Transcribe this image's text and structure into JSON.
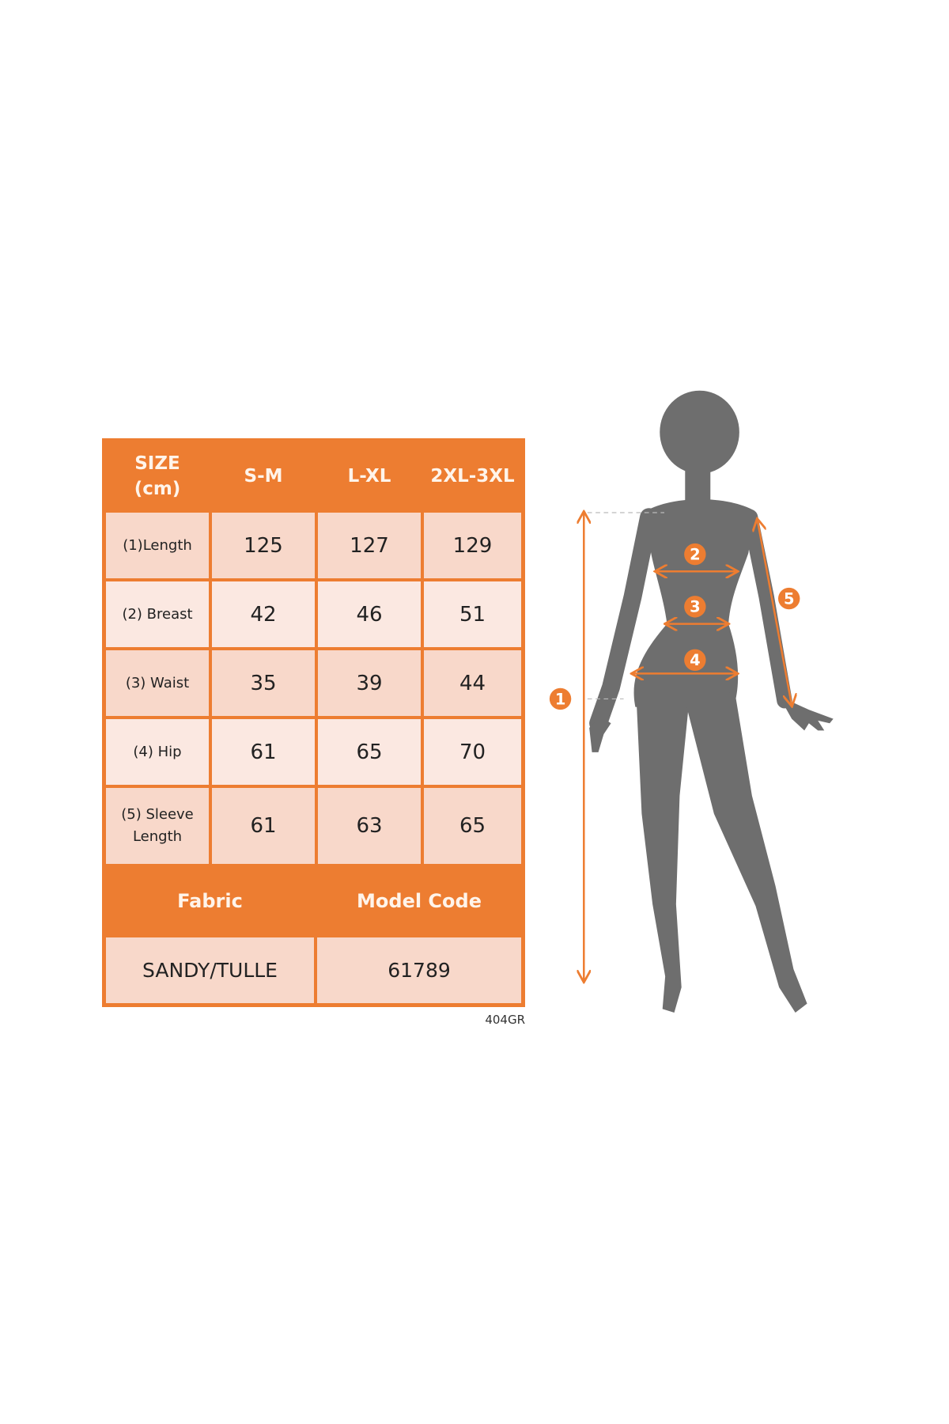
{
  "size_table": {
    "header": [
      "SIZE\n(cm)",
      "S-M",
      "L-XL",
      "2XL-3XL"
    ],
    "header_size": "SIZE",
    "header_unit": "(cm)",
    "rows": [
      {
        "label": "(1)Length",
        "values": [
          "125",
          "127",
          "129"
        ]
      },
      {
        "label": "(2) Breast",
        "values": [
          "42",
          "46",
          "51"
        ]
      },
      {
        "label": "(3) Waist",
        "values": [
          "35",
          "39",
          "44"
        ]
      },
      {
        "label": "(4) Hip",
        "values": [
          "61",
          "65",
          "70"
        ]
      },
      {
        "label": "(5) Sleeve Length",
        "values": [
          "61",
          "63",
          "65"
        ]
      }
    ]
  },
  "info_table": {
    "headers": [
      "Fabric",
      "Model Code"
    ],
    "values": [
      "SANDY/TULLE",
      "61789"
    ]
  },
  "product_code": "404GR",
  "figure": {
    "markers": [
      "1",
      "2",
      "3",
      "4",
      "5"
    ],
    "accent_color": "#ED7D31",
    "silhouette_color": "#6E6E6E"
  }
}
